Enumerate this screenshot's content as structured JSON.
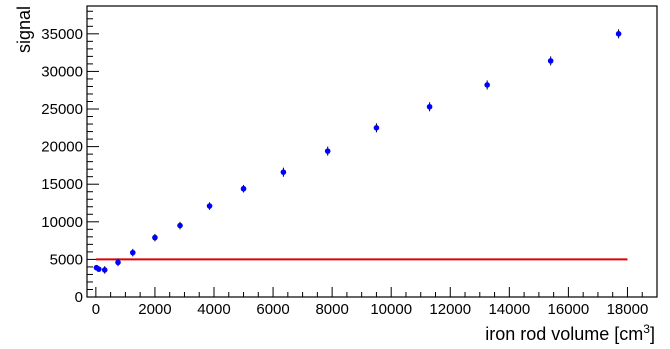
{
  "chart_data": {
    "type": "scatter",
    "title": "",
    "xlabel": "iron rod volume [cm",
    "xlabel_superscript": "3",
    "xlabel_suffix": "]",
    "ylabel": "signal",
    "xlim": [
      -300,
      19000
    ],
    "ylim": [
      0,
      38700
    ],
    "x_ticks": [
      0,
      2000,
      4000,
      6000,
      8000,
      10000,
      12000,
      14000,
      16000,
      18000
    ],
    "y_ticks": [
      0,
      5000,
      10000,
      15000,
      20000,
      25000,
      30000,
      35000
    ],
    "x_minor_step": 500,
    "y_minor_step": 1000,
    "grid": false,
    "legend": "none",
    "series": [
      {
        "type": "scatter",
        "color": "#0000ff",
        "points": [
          {
            "x": 20,
            "y": 3900,
            "yerr": 300
          },
          {
            "x": 100,
            "y": 3700,
            "yerr": 300
          },
          {
            "x": 300,
            "y": 3600,
            "yerr": 500
          },
          {
            "x": 750,
            "y": 4600,
            "yerr": 500
          },
          {
            "x": 1250,
            "y": 5900,
            "yerr": 500
          },
          {
            "x": 2000,
            "y": 7900,
            "yerr": 500
          },
          {
            "x": 2850,
            "y": 9500,
            "yerr": 500
          },
          {
            "x": 3850,
            "y": 12100,
            "yerr": 500
          },
          {
            "x": 5000,
            "y": 14400,
            "yerr": 500
          },
          {
            "x": 6350,
            "y": 16600,
            "yerr": 600
          },
          {
            "x": 7850,
            "y": 19400,
            "yerr": 600
          },
          {
            "x": 9500,
            "y": 22500,
            "yerr": 600
          },
          {
            "x": 11300,
            "y": 25300,
            "yerr": 600
          },
          {
            "x": 13250,
            "y": 28200,
            "yerr": 600
          },
          {
            "x": 15400,
            "y": 31400,
            "yerr": 600
          },
          {
            "x": 17700,
            "y": 35000,
            "yerr": 600
          }
        ]
      },
      {
        "type": "line",
        "color": "#dd0000",
        "x": [
          0,
          18000
        ],
        "y": [
          5000,
          5000
        ]
      }
    ]
  }
}
